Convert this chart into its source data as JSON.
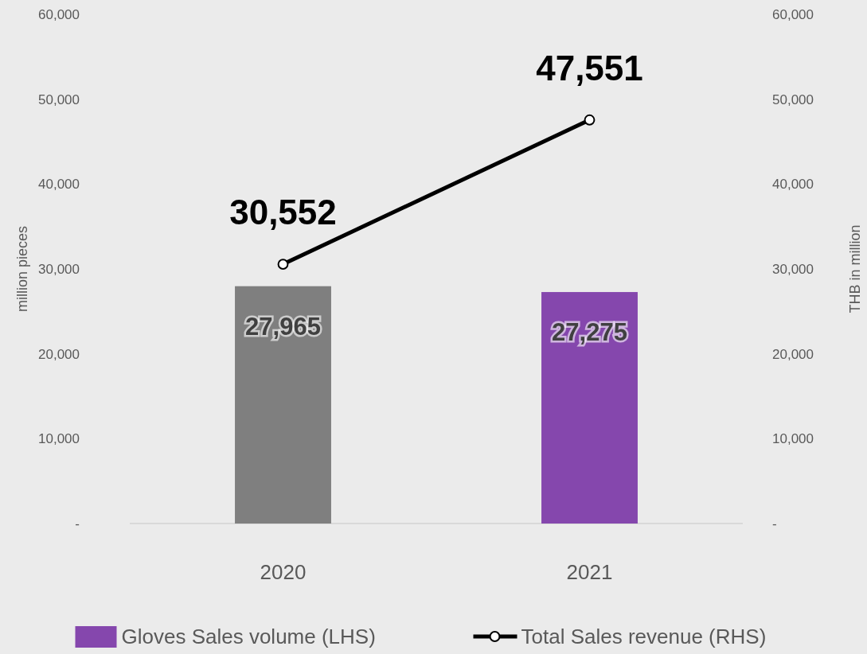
{
  "chart_data": {
    "type": "bar",
    "categories": [
      "2020",
      "2021"
    ],
    "series": [
      {
        "name": "Gloves Sales volume (LHS)",
        "color": "#8547ad",
        "colors": [
          "#7f7f7f",
          "#8547ad"
        ],
        "values": [
          27965,
          27275
        ],
        "value_labels": [
          "27,965",
          "27,275"
        ]
      },
      {
        "name": "Total Sales revenue (RHS)",
        "type": "line",
        "axis": "y2",
        "color": "#000000",
        "marker": "circle",
        "values": [
          30552,
          47551
        ],
        "value_labels": [
          "30,552",
          "47,551"
        ]
      }
    ],
    "ylabel": "million pieces",
    "y2label": "THB in million",
    "ylim": [
      0,
      60000
    ],
    "yticks": [
      {
        "value": 0,
        "label": "-"
      },
      {
        "value": 10000,
        "label": "10,000"
      },
      {
        "value": 20000,
        "label": "20,000"
      },
      {
        "value": 30000,
        "label": "30,000"
      },
      {
        "value": 40000,
        "label": "40,000"
      },
      {
        "value": 50000,
        "label": "50,000"
      },
      {
        "value": 60000,
        "label": "60,000"
      }
    ],
    "y2lim": [
      0,
      60000
    ],
    "y2ticks": [
      {
        "value": 0,
        "label": "-"
      },
      {
        "value": 10000,
        "label": "10,000"
      },
      {
        "value": 20000,
        "label": "20,000"
      },
      {
        "value": 30000,
        "label": "30,000"
      },
      {
        "value": 40000,
        "label": "40,000"
      },
      {
        "value": 50000,
        "label": "50,000"
      },
      {
        "value": 60000,
        "label": "60,000"
      }
    ],
    "legend": "bottom",
    "grid": false
  }
}
